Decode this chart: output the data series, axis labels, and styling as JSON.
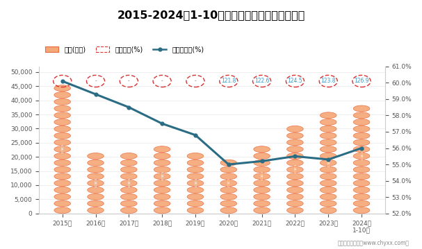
{
  "title": "2015-2024年1-10月四川省工业企业负债统计图",
  "years": [
    "2015年",
    "2016年",
    "2017年",
    "2018年",
    "2019年",
    "2020年",
    "2021年",
    "2022年",
    "2023年",
    "2024年\n1-10月"
  ],
  "fuzhai": [
    46200,
    22500,
    22500,
    24500,
    22000,
    19500,
    26000,
    33500,
    37500,
    40000
  ],
  "chanquan": [
    "-",
    "-",
    "-",
    "-",
    "-",
    "121.8",
    "122.6",
    "124.5",
    "123.8",
    "126.9"
  ],
  "fuzhai_lv": [
    60.1,
    59.3,
    58.5,
    57.5,
    56.8,
    55.0,
    55.2,
    55.5,
    55.3,
    56.0
  ],
  "ylim_left": [
    0,
    52000
  ],
  "ylim_right": [
    52.0,
    61.0
  ],
  "yticks_left": [
    0,
    5000,
    10000,
    15000,
    20000,
    25000,
    30000,
    35000,
    40000,
    45000,
    50000
  ],
  "yticks_right": [
    52.0,
    53.0,
    54.0,
    55.0,
    56.0,
    57.0,
    58.0,
    59.0,
    60.0,
    61.0
  ],
  "bar_fill_color": "#F5A878",
  "bar_edge_color": "#F5A878",
  "oval_fill_color": "#F5A878",
  "oval_stroke_color": "#E8693A",
  "dashed_oval_edge_color": "#D93030",
  "line_color": "#2B6C85",
  "line_marker_color": "#2B6C85",
  "legend_fuzhai": "负债(亿元)",
  "legend_chanquan": "产权比率(%)",
  "legend_fuzhai_lv": "资产负债率(%)",
  "footer": "制图：智研咨询（www.chyxx.com）",
  "background_color": "#FFFFFF",
  "axis_color": "#999999",
  "tick_color": "#555555"
}
